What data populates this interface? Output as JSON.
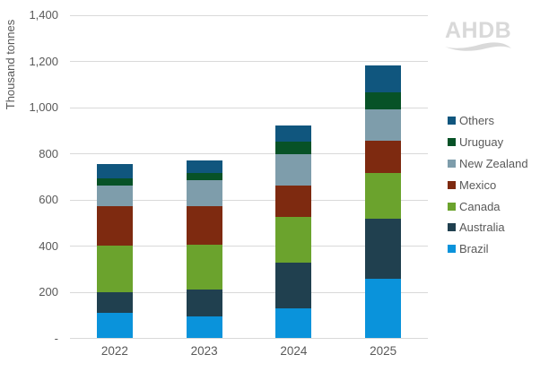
{
  "logo": {
    "text": "AHDB"
  },
  "chart_data": {
    "type": "bar",
    "stacked": true,
    "title": "",
    "xlabel": "",
    "ylabel": "Thousand tonnes",
    "ylim": [
      0,
      1400
    ],
    "ytick_step": 200,
    "ytick_labels": [
      "-",
      "200",
      "400",
      "600",
      "800",
      "1,000",
      "1,200",
      "1,400"
    ],
    "grid": true,
    "legend_position": "right",
    "categories": [
      "2022",
      "2023",
      "2024",
      "2025"
    ],
    "series": [
      {
        "name": "Brazil",
        "color": "#0A93DB",
        "values": [
          110,
          95,
          130,
          255
        ]
      },
      {
        "name": "Australia",
        "color": "#20404F",
        "values": [
          90,
          115,
          195,
          260
        ]
      },
      {
        "name": "Canada",
        "color": "#6BA32D",
        "values": [
          200,
          195,
          200,
          200
        ]
      },
      {
        "name": "Mexico",
        "color": "#7E2A10",
        "values": [
          170,
          165,
          135,
          140
        ]
      },
      {
        "name": "New Zealand",
        "color": "#7E9DAB",
        "values": [
          90,
          115,
          135,
          135
        ]
      },
      {
        "name": "Uruguay",
        "color": "#075227",
        "values": [
          30,
          30,
          55,
          75
        ]
      },
      {
        "name": "Others",
        "color": "#10567E",
        "values": [
          65,
          55,
          70,
          115
        ]
      }
    ],
    "totals": [
      755,
      770,
      920,
      1180
    ],
    "legend_order": [
      "Others",
      "Uruguay",
      "New Zealand",
      "Mexico",
      "Canada",
      "Australia",
      "Brazil"
    ]
  }
}
